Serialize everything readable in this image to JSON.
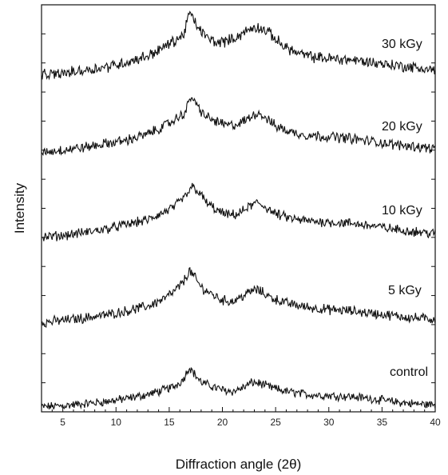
{
  "chart_data": {
    "type": "line",
    "title": "",
    "xlabel": "Diffraction angle (2θ)",
    "ylabel": "Intensity",
    "xlim": [
      3,
      40
    ],
    "x_ticks": [
      5,
      10,
      15,
      20,
      25,
      30,
      35,
      40
    ],
    "y_ticks_shown": false,
    "y_ticks_unlabeled_count": 14,
    "grid": false,
    "legend": "none (labels placed on each curve)",
    "series": [
      {
        "name": "control",
        "points": [
          [
            3,
            0.02
          ],
          [
            5,
            0.04
          ],
          [
            7,
            0.08
          ],
          [
            9,
            0.12
          ],
          [
            11,
            0.18
          ],
          [
            13,
            0.26
          ],
          [
            14.5,
            0.35
          ],
          [
            15.5,
            0.42
          ],
          [
            16.3,
            0.55
          ],
          [
            16.9,
            0.8
          ],
          [
            17.3,
            0.68
          ],
          [
            18,
            0.5
          ],
          [
            19,
            0.42
          ],
          [
            20,
            0.35
          ],
          [
            21,
            0.32
          ],
          [
            22,
            0.4
          ],
          [
            22.8,
            0.5
          ],
          [
            23.5,
            0.48
          ],
          [
            24.5,
            0.4
          ],
          [
            26,
            0.32
          ],
          [
            28,
            0.26
          ],
          [
            30,
            0.24
          ],
          [
            32,
            0.22
          ],
          [
            34,
            0.18
          ],
          [
            36,
            0.12
          ],
          [
            38,
            0.08
          ],
          [
            40,
            0.06
          ]
        ]
      },
      {
        "name": "5 kGy",
        "points": [
          [
            3,
            0.02
          ],
          [
            5,
            0.06
          ],
          [
            7,
            0.1
          ],
          [
            9,
            0.15
          ],
          [
            11,
            0.22
          ],
          [
            13,
            0.3
          ],
          [
            14.5,
            0.42
          ],
          [
            15.5,
            0.55
          ],
          [
            16.3,
            0.7
          ],
          [
            16.9,
            0.9
          ],
          [
            17.4,
            0.78
          ],
          [
            18,
            0.62
          ],
          [
            19,
            0.5
          ],
          [
            20,
            0.4
          ],
          [
            21,
            0.38
          ],
          [
            22,
            0.48
          ],
          [
            23,
            0.58
          ],
          [
            23.6,
            0.55
          ],
          [
            24.5,
            0.45
          ],
          [
            26,
            0.35
          ],
          [
            28,
            0.28
          ],
          [
            30,
            0.24
          ],
          [
            32,
            0.22
          ],
          [
            34,
            0.18
          ],
          [
            36,
            0.14
          ],
          [
            38,
            0.1
          ],
          [
            40,
            0.08
          ]
        ]
      },
      {
        "name": "10 kGy",
        "points": [
          [
            3,
            0.02
          ],
          [
            5,
            0.05
          ],
          [
            7,
            0.1
          ],
          [
            9,
            0.16
          ],
          [
            11,
            0.24
          ],
          [
            13,
            0.32
          ],
          [
            14.5,
            0.45
          ],
          [
            15.5,
            0.55
          ],
          [
            16.5,
            0.72
          ],
          [
            17.2,
            0.9
          ],
          [
            17.8,
            0.8
          ],
          [
            18.5,
            0.62
          ],
          [
            19.5,
            0.48
          ],
          [
            20.5,
            0.4
          ],
          [
            21.5,
            0.42
          ],
          [
            22.5,
            0.55
          ],
          [
            23.3,
            0.62
          ],
          [
            24,
            0.55
          ],
          [
            25,
            0.42
          ],
          [
            26.5,
            0.34
          ],
          [
            28,
            0.3
          ],
          [
            30,
            0.28
          ],
          [
            32,
            0.26
          ],
          [
            34,
            0.22
          ],
          [
            36,
            0.16
          ],
          [
            38,
            0.12
          ],
          [
            40,
            0.08
          ]
        ]
      },
      {
        "name": "20 kGy",
        "points": [
          [
            3,
            0.02
          ],
          [
            5,
            0.06
          ],
          [
            7,
            0.1
          ],
          [
            9,
            0.16
          ],
          [
            11,
            0.22
          ],
          [
            13,
            0.32
          ],
          [
            14.5,
            0.45
          ],
          [
            15.5,
            0.55
          ],
          [
            16.5,
            0.68
          ],
          [
            17.1,
            0.95
          ],
          [
            17.6,
            0.78
          ],
          [
            18.5,
            0.6
          ],
          [
            19.5,
            0.52
          ],
          [
            20.5,
            0.46
          ],
          [
            21.5,
            0.48
          ],
          [
            22.5,
            0.58
          ],
          [
            23.3,
            0.68
          ],
          [
            24,
            0.6
          ],
          [
            25,
            0.45
          ],
          [
            26.5,
            0.35
          ],
          [
            28,
            0.3
          ],
          [
            30,
            0.28
          ],
          [
            32,
            0.25
          ],
          [
            34,
            0.2
          ],
          [
            36,
            0.15
          ],
          [
            38,
            0.12
          ],
          [
            40,
            0.08
          ]
        ]
      },
      {
        "name": "30 kGy",
        "points": [
          [
            3,
            0.02
          ],
          [
            5,
            0.05
          ],
          [
            7,
            0.1
          ],
          [
            9,
            0.15
          ],
          [
            11,
            0.22
          ],
          [
            13,
            0.32
          ],
          [
            14.5,
            0.45
          ],
          [
            15.5,
            0.55
          ],
          [
            16.3,
            0.62
          ],
          [
            16.9,
            0.98
          ],
          [
            17.5,
            0.8
          ],
          [
            18.5,
            0.6
          ],
          [
            19.5,
            0.52
          ],
          [
            20.5,
            0.55
          ],
          [
            21.5,
            0.62
          ],
          [
            22.5,
            0.72
          ],
          [
            23.3,
            0.76
          ],
          [
            24.3,
            0.68
          ],
          [
            25.5,
            0.5
          ],
          [
            27,
            0.36
          ],
          [
            28.5,
            0.3
          ],
          [
            30,
            0.28
          ],
          [
            32,
            0.26
          ],
          [
            34,
            0.22
          ],
          [
            36,
            0.18
          ],
          [
            38,
            0.14
          ],
          [
            40,
            0.1
          ]
        ]
      }
    ]
  }
}
